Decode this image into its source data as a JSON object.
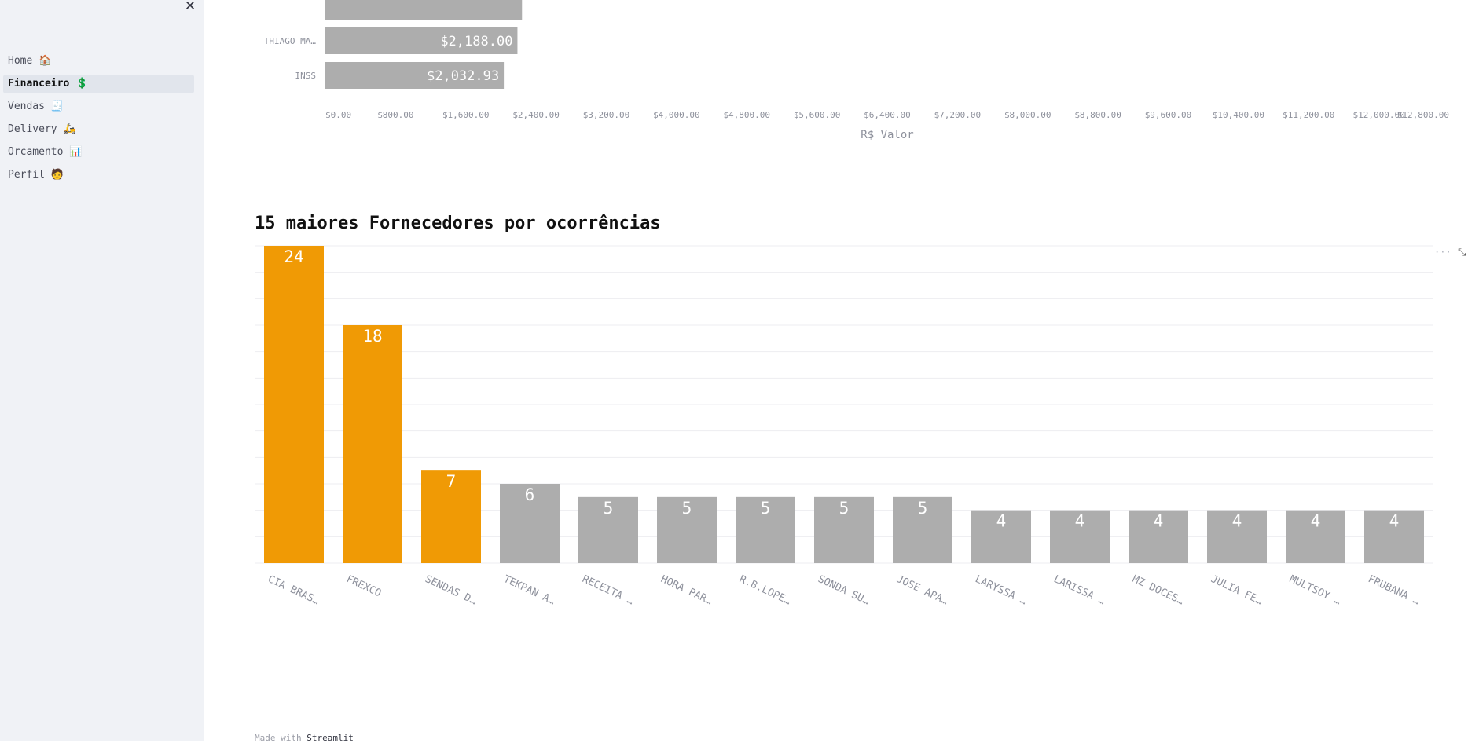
{
  "sidebar": {
    "close_icon": "close-icon",
    "close_glyph": "✕",
    "items": [
      {
        "label": "Home 🏠",
        "key": "home",
        "active": false
      },
      {
        "label": "Financeiro 💲",
        "key": "financeiro",
        "active": true
      },
      {
        "label": "Vendas 🧾",
        "key": "vendas",
        "active": false
      },
      {
        "label": "Delivery 🛵",
        "key": "delivery",
        "active": false
      },
      {
        "label": "Orcamento 📊",
        "key": "orcamento",
        "active": false
      },
      {
        "label": "Perfil 🧑",
        "key": "perfil",
        "active": false
      }
    ]
  },
  "main": {
    "chart_menu": "···",
    "fullscreen_glyph": "⤡",
    "section_title": "15 maiores Fornecedores por ocorrências",
    "footer": {
      "prefix": "Made with ",
      "link": "Streamlit"
    }
  },
  "colors": {
    "highlight": "#f09a05",
    "default_bar": "#adadad",
    "label_on_bar": "#ffffff",
    "axis_text": "#8e919c"
  },
  "chart_data": [
    {
      "type": "bar",
      "orientation": "horizontal",
      "categories": [
        "",
        "THIAGO MA…",
        "INSS"
      ],
      "values": [
        2240,
        2188.0,
        2032.93
      ],
      "value_labels": [
        "",
        "$2,188.00",
        "$2,032.93"
      ],
      "xlabel": "R$ Valor",
      "xlim": [
        0,
        12800
      ],
      "x_ticks": [
        "$0.00",
        "$800.00",
        "$1,600.00",
        "$2,400.00",
        "$3,200.00",
        "$4,000.00",
        "$4,800.00",
        "$5,600.00",
        "$6,400.00",
        "$7,200.00",
        "$8,000.00",
        "$8,800.00",
        "$9,600.00",
        "$10,400.00",
        "$11,200.00",
        "$12,000.00",
        "$12,800.00"
      ],
      "grid": false
    },
    {
      "type": "bar",
      "orientation": "vertical",
      "categories": [
        "CIA BRAS…",
        "FREXCO",
        "SENDAS D…",
        "TEKPAN A…",
        "RECEITA …",
        "HORA PAR…",
        "R.B.LOPE…",
        "SONDA SU…",
        "JOSE APA…",
        "LARYSSA …",
        "LARISSA …",
        "MZ DOCES…",
        "JULIA FE…",
        "MULTSOY …",
        "FRUBANA …"
      ],
      "values": [
        24,
        18,
        7,
        6,
        5,
        5,
        5,
        5,
        5,
        4,
        4,
        4,
        4,
        4,
        4
      ],
      "highlight_top": 3,
      "ylim": [
        0,
        24
      ],
      "grid": true
    }
  ]
}
